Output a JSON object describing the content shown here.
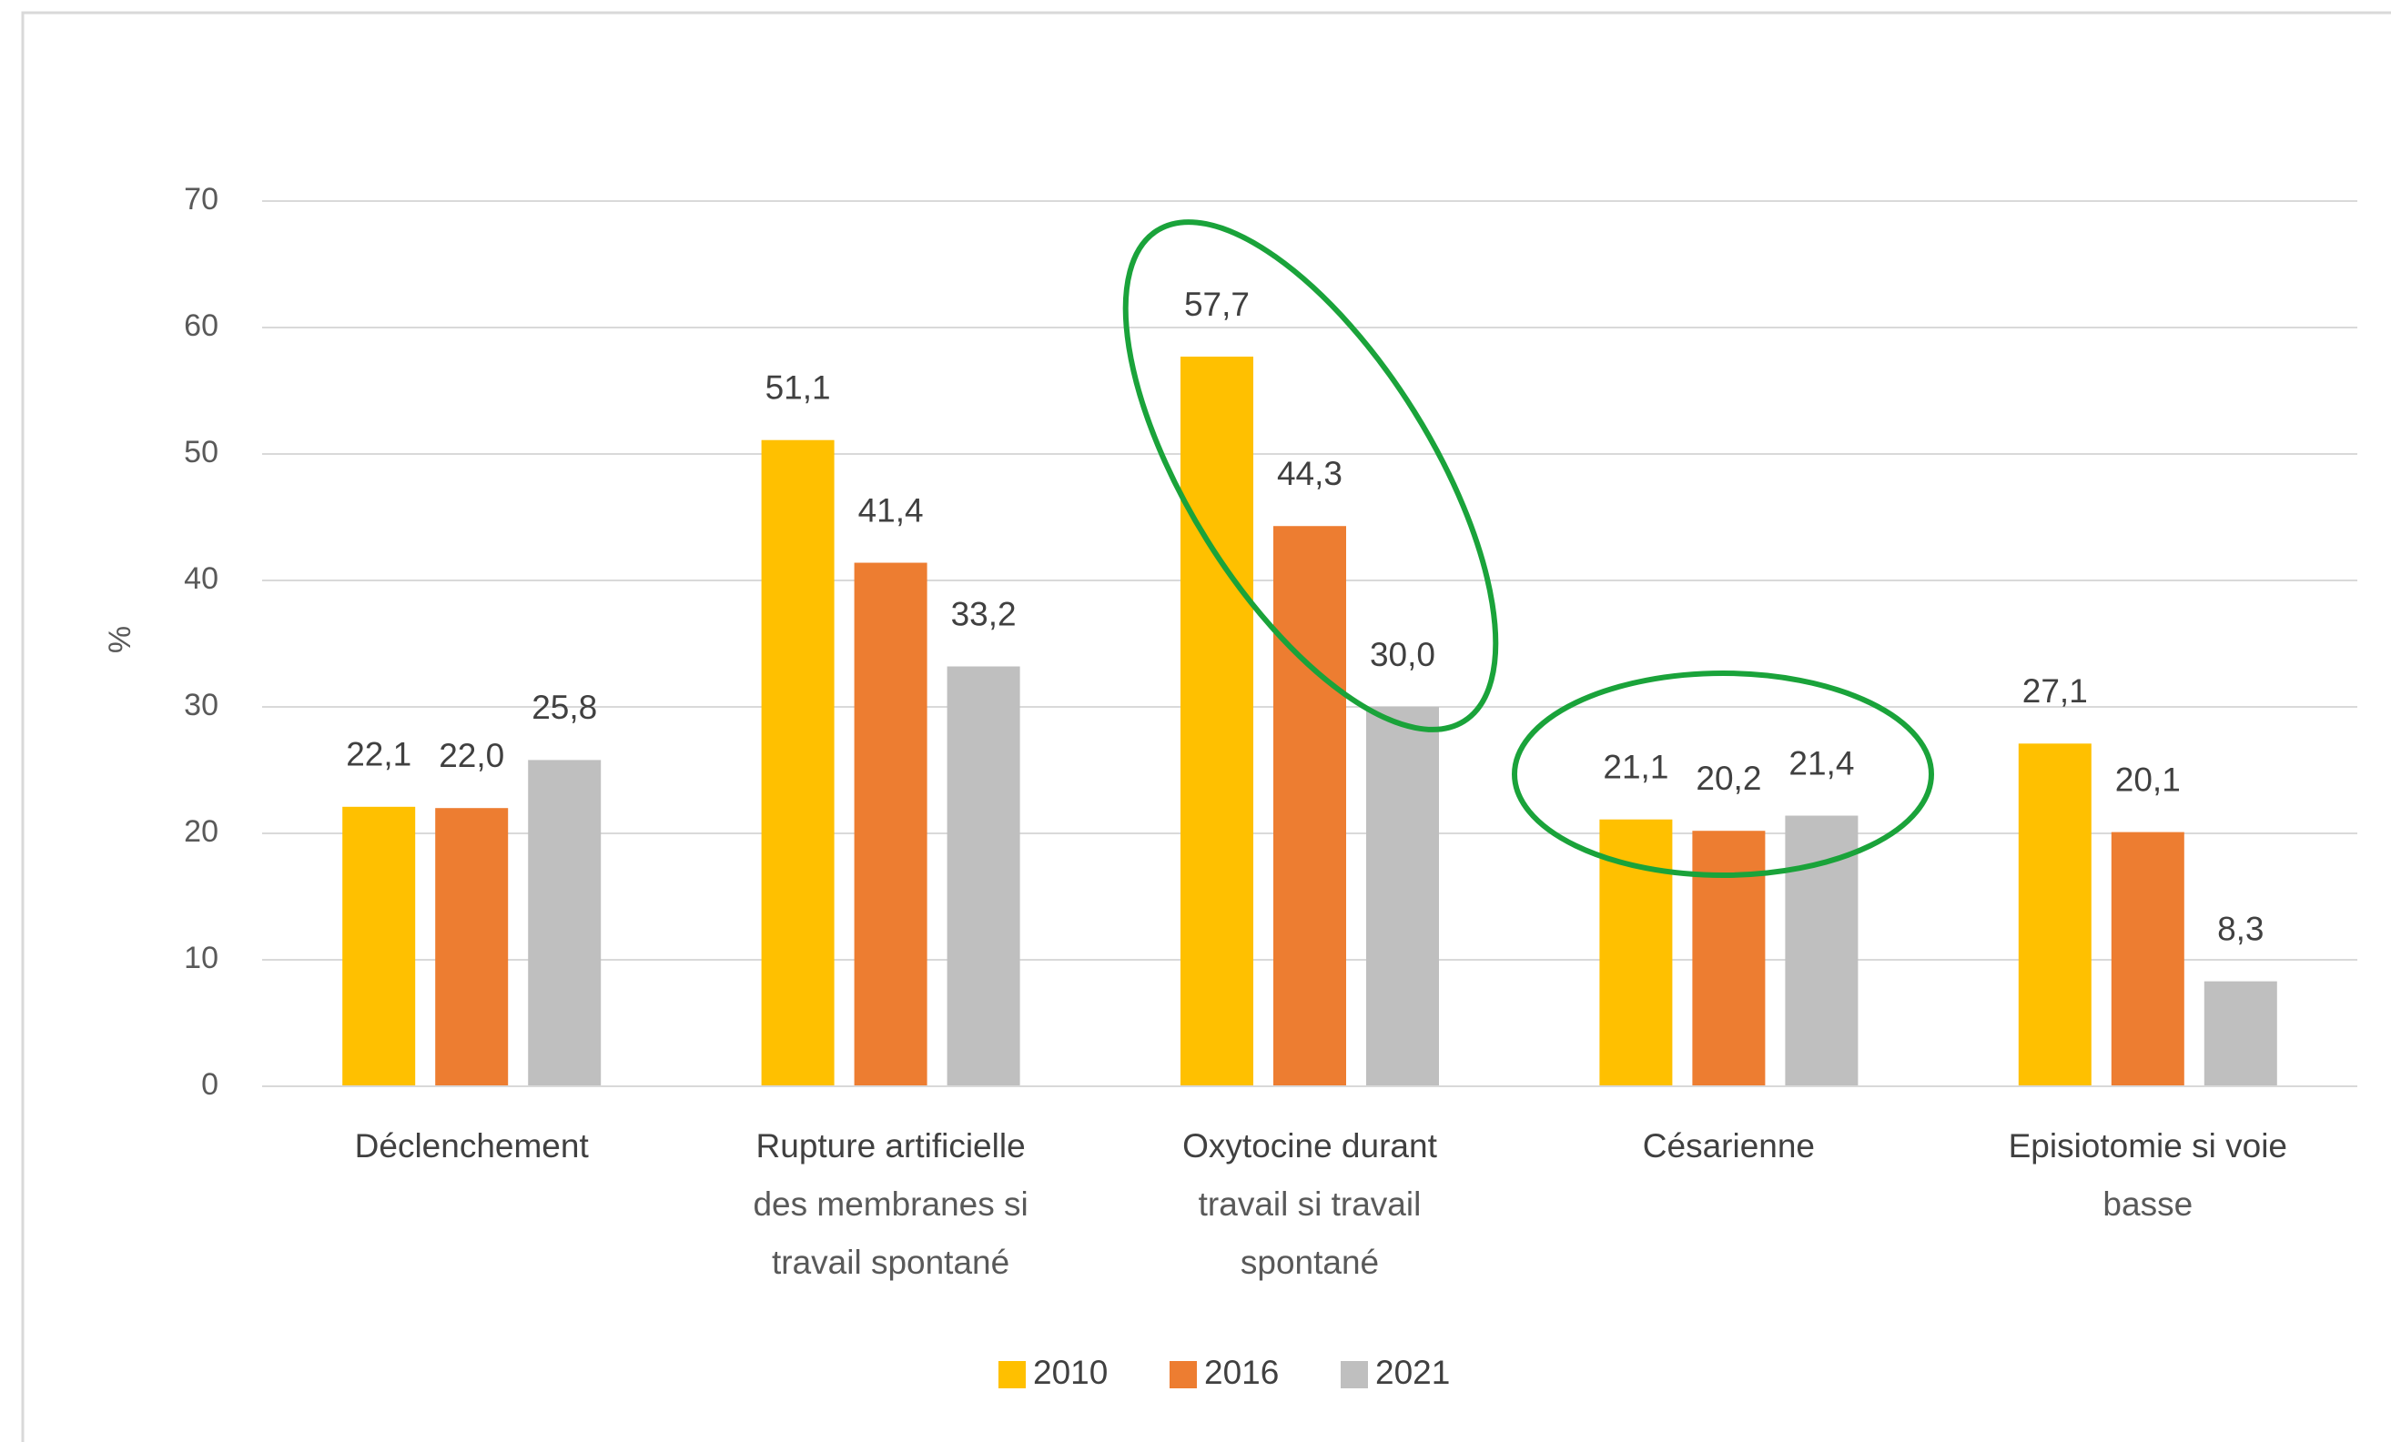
{
  "chart_data": {
    "type": "bar",
    "y_label": "%",
    "categories": [
      "Déclenchement",
      "Rupture artificielle\ndes membranes si\ntravail spontané",
      "Oxytocine durant\ntravail si travail\nspontané",
      "Césarienne",
      "Episiotomie si voie\nbasse"
    ],
    "series": [
      {
        "name": "2010",
        "color": "#FFC000",
        "values": [
          22.1,
          51.1,
          57.7,
          21.1,
          27.1
        ],
        "value_labels": [
          "22,1",
          "51,1",
          "57,7",
          "21,1",
          "27,1"
        ]
      },
      {
        "name": "2016",
        "color": "#ED7D31",
        "values": [
          22.0,
          41.4,
          44.3,
          20.2,
          20.1
        ],
        "value_labels": [
          "22,0",
          "41,4",
          "44,3",
          "20,2",
          "20,1"
        ]
      },
      {
        "name": "2021",
        "color": "#BFBFBF",
        "values": [
          25.8,
          33.2,
          30.0,
          21.4,
          8.3
        ],
        "value_labels": [
          "25,8",
          "33,2",
          "30,0",
          "21,4",
          "8,3"
        ]
      }
    ],
    "ylim": [
      0,
      70
    ],
    "yticks": [
      0,
      10,
      20,
      30,
      40,
      50,
      60,
      70
    ],
    "grid": true,
    "legend": "bottom"
  }
}
